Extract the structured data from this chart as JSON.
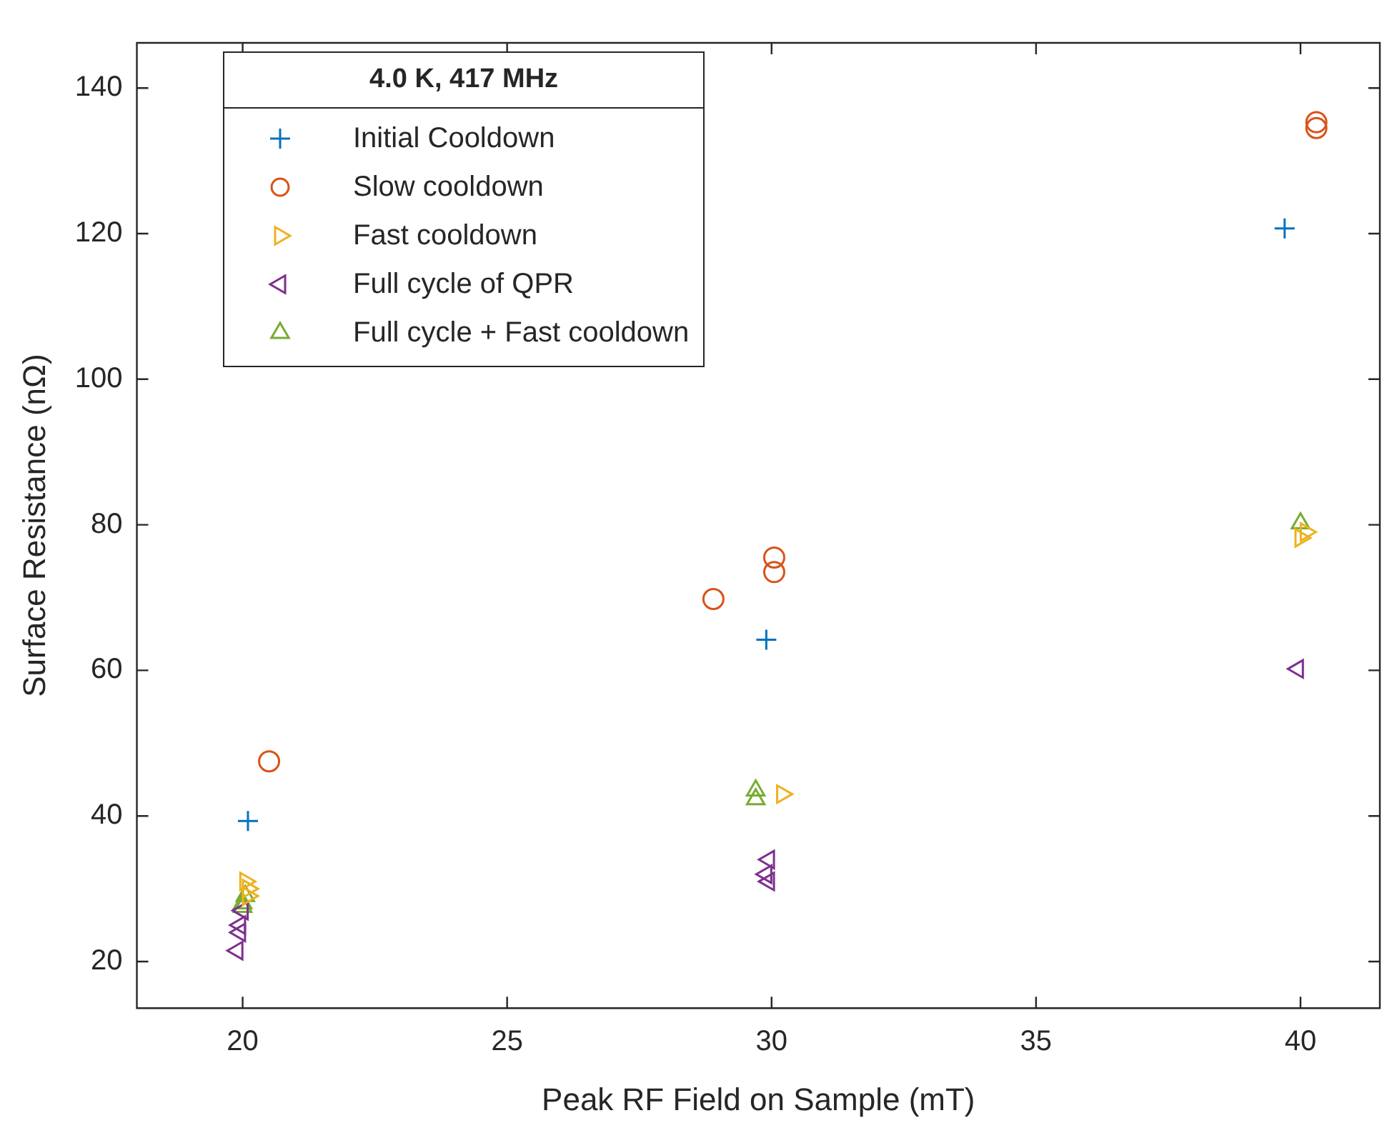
{
  "chart_data": {
    "type": "scatter",
    "xlabel": "Peak RF Field on Sample (mT)",
    "ylabel": "Surface Resistance (nΩ)",
    "legend_title": "4.0 K, 417 MHz",
    "legend": "top left",
    "grid": false,
    "xlim": [
      18,
      41.5
    ],
    "xticks": [
      20,
      25,
      30,
      35,
      40
    ],
    "ylim": [
      13.6,
      146.2
    ],
    "yticks": [
      20,
      40,
      60,
      80,
      100,
      120,
      140
    ],
    "series": [
      {
        "name": "Initial Cooldown",
        "color": "#0072bd",
        "marker": "cross",
        "x": [
          20.1,
          29.9,
          39.7
        ],
        "values": [
          39.3,
          64.2,
          120.7
        ]
      },
      {
        "name": "Slow cooldown",
        "color": "#d95319",
        "marker": "circle",
        "x": [
          20.5,
          28.9,
          30.05,
          30.05,
          40.3,
          40.3
        ],
        "values": [
          47.5,
          69.8,
          75.5,
          73.5,
          135.3,
          134.5
        ]
      },
      {
        "name": "Fast cooldown",
        "color": "#edb120",
        "marker": "triangle-right",
        "x": [
          20.05,
          20.1,
          20.1,
          30.2,
          40.1,
          40.0
        ],
        "values": [
          31,
          30,
          29,
          43,
          79,
          78.2
        ]
      },
      {
        "name": "Full cycle of QPR",
        "color": "#7e2f8e",
        "marker": "triangle-left",
        "x": [
          20.0,
          19.95,
          19.95,
          19.9,
          29.95,
          29.9,
          29.95,
          39.95
        ],
        "values": [
          27,
          25,
          24,
          21.5,
          34,
          32,
          31,
          60.2
        ]
      },
      {
        "name": "Full cycle + Fast cooldown",
        "color": "#77ac30",
        "marker": "triangle",
        "x": [
          20.0,
          20.0,
          20.05,
          29.7,
          29.7,
          40.0
        ],
        "values": [
          28,
          27.5,
          29,
          43.5,
          42.3,
          80.2
        ]
      }
    ]
  }
}
